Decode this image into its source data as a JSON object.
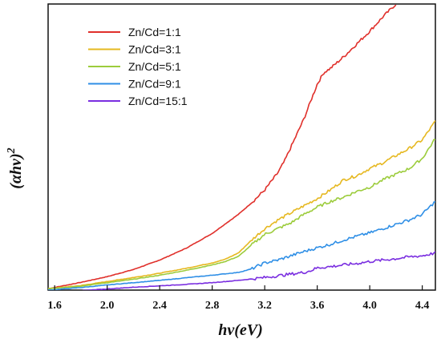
{
  "chart_data": {
    "type": "line",
    "xlabel": "hv(eV)",
    "ylabel": "(αhv)",
    "ylabel_exponent": "2",
    "xlim": [
      1.55,
      4.5
    ],
    "ylim": [
      0,
      100
    ],
    "x_ticks": [
      "1.6",
      "2.0",
      "2.4",
      "2.8",
      "3.2",
      "3.6",
      "4.0",
      "4.4"
    ],
    "x_tick_values": [
      1.6,
      2.0,
      2.4,
      2.8,
      3.2,
      3.6,
      4.0,
      4.4
    ],
    "y_ticks_shown": false,
    "grid": false,
    "legend_position": "top-left",
    "series": [
      {
        "name": "Zn/Cd=1:1",
        "color": "#e0302b",
        "x": [
          1.55,
          1.8,
          2.0,
          2.2,
          2.4,
          2.6,
          2.8,
          3.0,
          3.1,
          3.2,
          3.3,
          3.35,
          3.4,
          3.5,
          3.55,
          3.6,
          3.65,
          3.7,
          3.8,
          3.9,
          4.0,
          4.1,
          4.2
        ],
        "y": [
          0.5,
          2.7,
          4.7,
          7.2,
          10.5,
          14.6,
          19.8,
          26.5,
          30.5,
          35.0,
          41.0,
          45.0,
          50.0,
          60.0,
          66.0,
          72.0,
          76.0,
          77.5,
          81.5,
          86.0,
          90.5,
          95.5,
          100
        ]
      },
      {
        "name": "Zn/Cd=3:1",
        "color": "#e6b820",
        "x": [
          1.55,
          1.8,
          2.0,
          2.2,
          2.4,
          2.6,
          2.8,
          2.9,
          3.0,
          3.1,
          3.2,
          3.3,
          3.4,
          3.5,
          3.6,
          3.7,
          3.8,
          3.9,
          4.0,
          4.1,
          4.2,
          4.3,
          4.4,
          4.5
        ],
        "y": [
          0.5,
          1.6,
          3.0,
          4.4,
          5.9,
          7.6,
          9.5,
          10.8,
          13.0,
          17.5,
          21.5,
          24.5,
          27.0,
          29.5,
          32.0,
          35.0,
          38.5,
          40.0,
          42.5,
          44.5,
          47.0,
          49.5,
          52.5,
          59.0
        ]
      },
      {
        "name": "Zn/Cd=5:1",
        "color": "#9ccc3c",
        "x": [
          1.55,
          1.8,
          2.0,
          2.2,
          2.4,
          2.6,
          2.8,
          2.9,
          3.0,
          3.1,
          3.2,
          3.3,
          3.4,
          3.5,
          3.6,
          3.7,
          3.8,
          3.9,
          4.0,
          4.1,
          4.2,
          4.3,
          4.4,
          4.5
        ],
        "y": [
          0.5,
          1.4,
          2.6,
          3.8,
          5.2,
          6.9,
          8.8,
          10.0,
          11.8,
          15.8,
          19.5,
          21.5,
          23.5,
          26.5,
          29.0,
          31.0,
          32.5,
          34.5,
          36.0,
          38.5,
          40.5,
          42.5,
          46.0,
          53.0
        ]
      },
      {
        "name": "Zn/Cd=9:1",
        "color": "#2f8fe6",
        "x": [
          1.55,
          1.8,
          2.0,
          2.2,
          2.4,
          2.6,
          2.8,
          3.0,
          3.1,
          3.2,
          3.3,
          3.4,
          3.5,
          3.6,
          3.7,
          3.8,
          3.9,
          4.0,
          4.1,
          4.2,
          4.3,
          4.4,
          4.5
        ],
        "y": [
          0.0,
          0.9,
          1.8,
          2.6,
          3.4,
          4.3,
          5.2,
          6.2,
          7.4,
          9.5,
          10.5,
          12.0,
          13.5,
          14.8,
          16.0,
          17.5,
          18.8,
          20.0,
          21.5,
          23.0,
          24.5,
          26.5,
          31.0
        ]
      },
      {
        "name": "Zn/Cd=15:1",
        "color": "#7a2ee0",
        "x": [
          1.55,
          1.8,
          2.0,
          2.2,
          2.4,
          2.6,
          2.8,
          3.0,
          3.2,
          3.4,
          3.5,
          3.55,
          3.6,
          3.7,
          3.8,
          3.9,
          4.0,
          4.1,
          4.2,
          4.3,
          4.4,
          4.5
        ],
        "y": [
          -1.0,
          -0.2,
          0.4,
          1.0,
          1.5,
          2.0,
          2.6,
          3.4,
          4.4,
          5.6,
          6.2,
          6.8,
          7.8,
          8.2,
          8.8,
          9.3,
          10.0,
          10.5,
          11.0,
          11.6,
          12.0,
          13.0
        ]
      }
    ]
  }
}
